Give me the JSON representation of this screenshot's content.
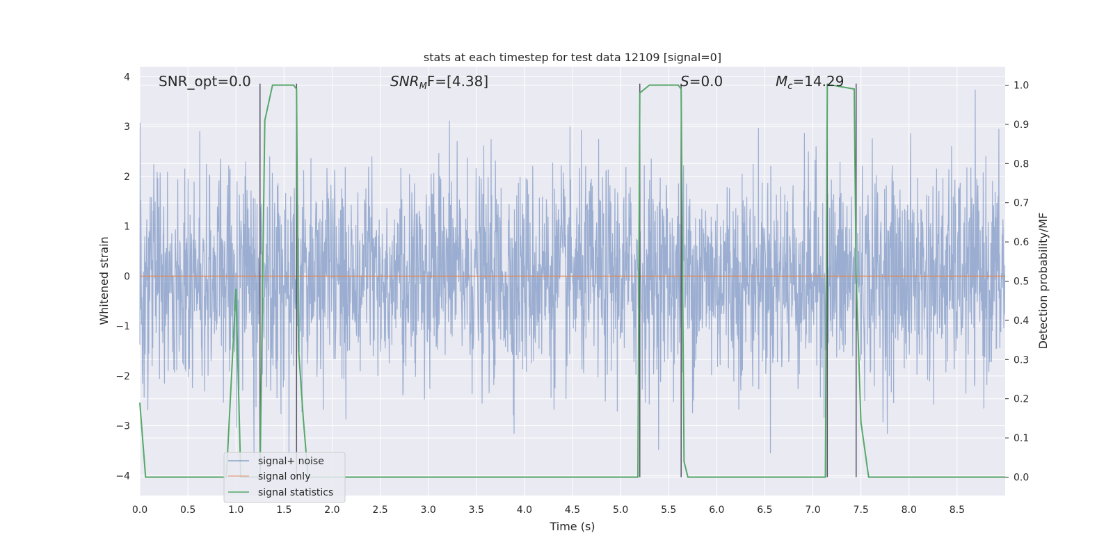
{
  "chart_data": {
    "type": "line",
    "title": "stats at each timestep for test data 12109 [signal=0]",
    "xlabel": "Time (s)",
    "ylabel_left": "Whitened strain",
    "ylabel_right": "Detection probability/MF",
    "xlim": [
      0,
      9.0
    ],
    "ylim_left": [
      -4.4,
      4.2
    ],
    "ylim_right": [
      -0.047,
      1.047
    ],
    "x_ticks": [
      "0.0",
      "0.5",
      "1.0",
      "1.5",
      "2.0",
      "2.5",
      "3.0",
      "3.5",
      "4.0",
      "4.5",
      "5.0",
      "5.5",
      "6.0",
      "6.5",
      "7.0",
      "7.5",
      "8.0",
      "8.5"
    ],
    "y_ticks_left": [
      "−4",
      "−3",
      "−2",
      "−1",
      "0",
      "1",
      "2",
      "3",
      "4"
    ],
    "y_ticks_right": [
      "0.0",
      "0.1",
      "0.2",
      "0.3",
      "0.4",
      "0.5",
      "0.6",
      "0.7",
      "0.8",
      "0.9",
      "1.0"
    ],
    "grid": true,
    "legend_position": "lower-left",
    "annotations": {
      "snr_opt": "SNR_opt=0.0",
      "snr_mf_italic": "SNR",
      "snr_mf_sub": "M",
      "snr_mf_rest": "F=[4.38]",
      "s_italic": "S",
      "s_rest": "=0.0",
      "mc_italic": "M",
      "mc_sub": "c",
      "mc_rest": "=14.29"
    },
    "series": [
      {
        "name": "signal+ noise",
        "color": "#4c72b0",
        "style": "gaussian noise trace, amplitude ~±1.5 with peaks to ~±3.5",
        "x_range": [
          0,
          9.0
        ]
      },
      {
        "name": "signal only",
        "color": "#dd8452",
        "values_constant": 0.0
      },
      {
        "name": "signal statistics",
        "color": "#55a868",
        "axis": "right",
        "x": [
          0.0,
          0.06,
          0.1,
          0.2,
          0.9,
          1.0,
          1.05,
          1.1,
          1.25,
          1.3,
          1.38,
          1.6,
          1.63,
          1.65,
          1.7,
          1.75,
          5.18,
          5.2,
          5.25,
          5.3,
          5.6,
          5.63,
          5.66,
          5.7,
          5.8,
          7.13,
          7.15,
          7.2,
          7.43,
          7.45,
          7.5,
          7.58,
          9.0
        ],
        "values": [
          0.19,
          0.0,
          0.0,
          0.0,
          0.0,
          0.48,
          0.0,
          0.0,
          0.0,
          0.91,
          1.0,
          1.0,
          0.99,
          0.33,
          0.15,
          0.0,
          0.0,
          0.98,
          0.99,
          1.0,
          1.0,
          0.99,
          0.04,
          0.0,
          0.0,
          0.0,
          1.0,
          1.0,
          0.99,
          0.51,
          0.14,
          0.0,
          0.0
        ]
      }
    ],
    "vertical_markers_x": [
      1.25,
      1.63,
      5.2,
      5.63,
      7.15,
      7.45
    ],
    "vertical_marker_color": "#555566"
  }
}
